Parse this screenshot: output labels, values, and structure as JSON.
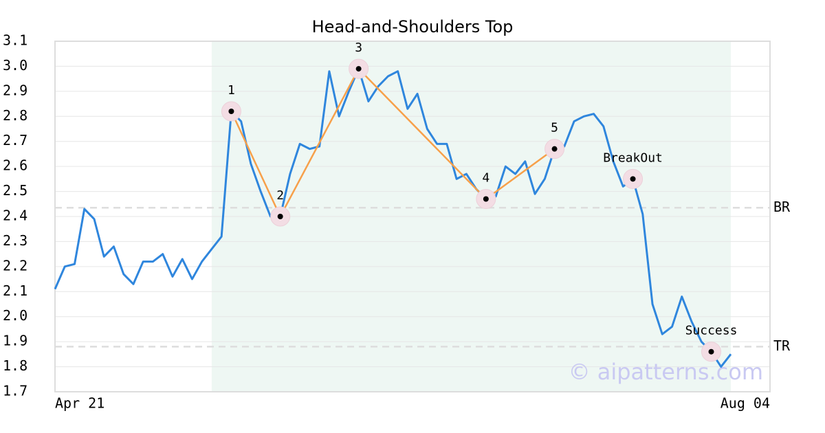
{
  "chart_data": {
    "type": "line",
    "title": "Head-and-Shoulders Top",
    "x": [
      0,
      1,
      2,
      3,
      4,
      5,
      6,
      7,
      8,
      9,
      10,
      11,
      12,
      13,
      14,
      15,
      16,
      17,
      18,
      19,
      20,
      21,
      22,
      23,
      24,
      25,
      26,
      27,
      28,
      29,
      30,
      31,
      32,
      33,
      34,
      35,
      36,
      37,
      38,
      39,
      40,
      41,
      42,
      43,
      44,
      45,
      46,
      47,
      48,
      49,
      50,
      51,
      52,
      53,
      54,
      55,
      56,
      57,
      58,
      59,
      60,
      61,
      62,
      63,
      64,
      65,
      66,
      67,
      68,
      69
    ],
    "values": [
      2.11,
      2.2,
      2.21,
      2.43,
      2.39,
      2.24,
      2.28,
      2.17,
      2.13,
      2.22,
      2.22,
      2.25,
      2.16,
      2.23,
      2.15,
      2.22,
      2.27,
      2.32,
      2.82,
      2.78,
      2.61,
      2.5,
      2.4,
      2.4,
      2.57,
      2.69,
      2.67,
      2.68,
      2.98,
      2.8,
      2.9,
      2.99,
      2.86,
      2.92,
      2.96,
      2.98,
      2.83,
      2.89,
      2.75,
      2.69,
      2.69,
      2.55,
      2.57,
      2.51,
      2.47,
      2.48,
      2.6,
      2.57,
      2.62,
      2.49,
      2.55,
      2.67,
      2.68,
      2.78,
      2.8,
      2.81,
      2.76,
      2.62,
      2.52,
      2.55,
      2.41,
      2.05,
      1.93,
      1.96,
      2.08,
      1.98,
      1.9,
      1.86,
      1.8,
      1.85
    ],
    "color": "#2f86dd",
    "pattern": {
      "x": [
        18,
        23,
        31,
        44,
        51
      ],
      "values": [
        2.82,
        2.4,
        2.99,
        2.47,
        2.67
      ],
      "labels": [
        "1",
        "2",
        "3",
        "4",
        "5"
      ],
      "color": "#f7a04a"
    },
    "events": {
      "x": [
        59,
        67
      ],
      "values": [
        2.55,
        1.86
      ],
      "labels": [
        "BreakOut",
        "Success"
      ]
    },
    "levels": [
      {
        "label": "BR",
        "value": 2.435
      },
      {
        "label": "TR",
        "value": 1.88
      }
    ],
    "shaded_range": [
      16,
      69
    ],
    "xlim": [
      0,
      73
    ],
    "xticks": [
      {
        "value": 0,
        "label": "Apr 21"
      },
      {
        "value": 73,
        "label": "Aug 04"
      }
    ],
    "ylim": [
      1.7,
      3.1
    ],
    "yticks": [
      1.7,
      1.8,
      1.9,
      {
        "value": 2.0,
        "label": "2.0"
      },
      2.1,
      2.2,
      2.3,
      2.4,
      2.5,
      2.6,
      2.7,
      2.8,
      2.9,
      {
        "value": 3.0,
        "label": "3.0"
      },
      3.1
    ],
    "grid": true,
    "watermark": "© aipatterns.com"
  }
}
